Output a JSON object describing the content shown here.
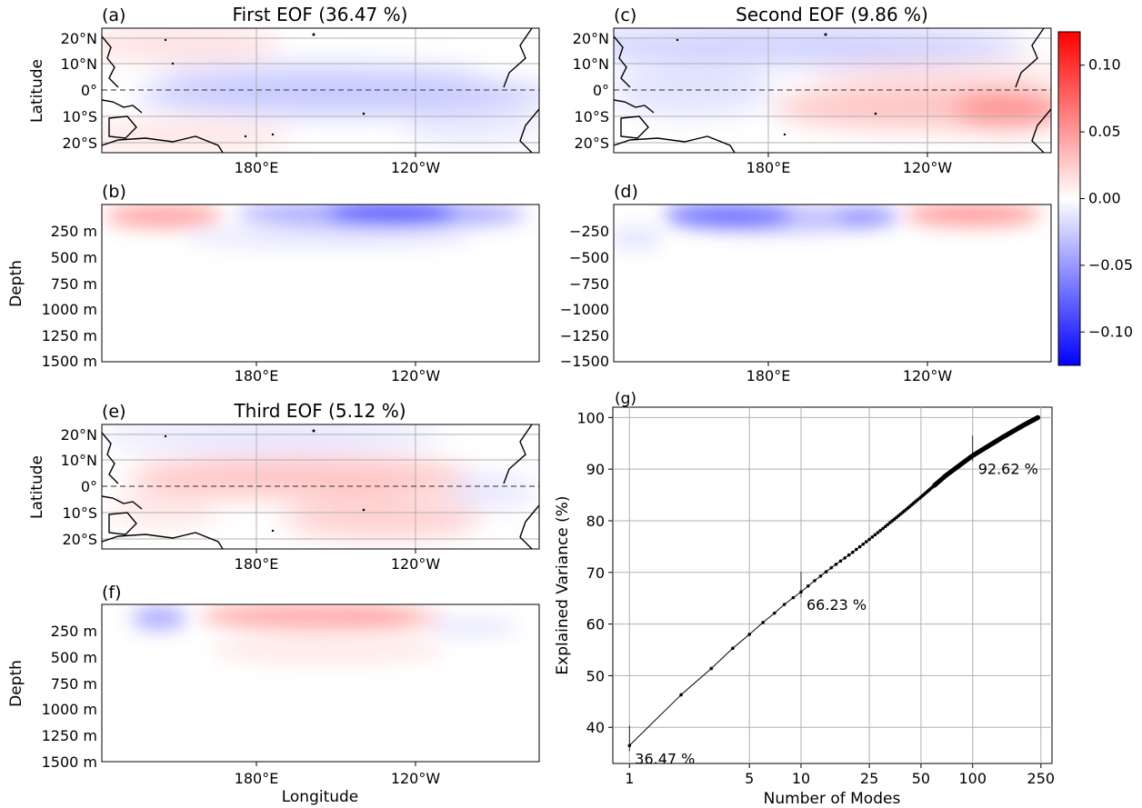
{
  "chart_data": [
    {
      "panel": "(a)",
      "type": "heatmap",
      "title": "First EOF (36.47 %)",
      "ylabel": "Latitude",
      "xlabel": "",
      "xticks": [
        "180°E",
        "120°W"
      ],
      "yticks": [
        "20°N",
        "10°N",
        "0°",
        "10°S",
        "20°S"
      ],
      "pattern": "weak negative (blue) along the equatorial band 150°E–120°W, weak positive (pink) near 10°–20° N/S in the west"
    },
    {
      "panel": "(b)",
      "type": "heatmap",
      "title": "",
      "ylabel": "Depth",
      "xlabel": "",
      "xticks": [
        "180°E",
        "120°W"
      ],
      "yticks": [
        "250 m",
        "500 m",
        "750 m",
        "1000 m",
        "1250 m",
        "1500 m"
      ],
      "pattern": "positive near 150°E above 150 m, strong negative 170°W–110°W above 200 m"
    },
    {
      "panel": "(c)",
      "type": "heatmap",
      "title": "Second EOF (9.86 %)",
      "ylabel": "",
      "xlabel": "",
      "xticks": [
        "180°E",
        "120°W"
      ],
      "yticks": [
        "20°N",
        "10°N",
        "0°",
        "10°S",
        "20°S"
      ],
      "pattern": "negative in the north and west, positive across the southeastern Pacific off South America"
    },
    {
      "panel": "(d)",
      "type": "heatmap",
      "title": "",
      "ylabel": "",
      "xlabel": "",
      "xticks": [
        "180°E",
        "120°W"
      ],
      "yticks": [
        "−250",
        "−500",
        "−750",
        "−1000",
        "−1250",
        "−1500"
      ],
      "pattern": "strong negative 160°E–160°W and positive east of 125°W above 150 m"
    },
    {
      "panel": "(e)",
      "type": "heatmap",
      "title": "Third EOF (5.12 %)",
      "ylabel": "Latitude",
      "xlabel": "",
      "xticks": [
        "180°E",
        "120°W"
      ],
      "yticks": [
        "20°N",
        "10°N",
        "0°",
        "10°S",
        "20°S"
      ],
      "pattern": "positive along equator 170°E–120°W extending south, negative near 15°–20°N"
    },
    {
      "panel": "(f)",
      "type": "heatmap",
      "title": "",
      "ylabel": "Depth",
      "xlabel": "Longitude",
      "xticks": [
        "180°E",
        "120°W"
      ],
      "yticks": [
        "250 m",
        "500 m",
        "750 m",
        "1000 m",
        "1250 m",
        "1500 m"
      ],
      "pattern": "negative near 145°E and positive 165°E–120°W above 150 m"
    },
    {
      "panel": "(g)",
      "type": "line",
      "title": "",
      "xlabel": "Number of Modes",
      "ylabel": "Explained Variance (%)",
      "xscale": "log",
      "xlim": [
        0.8,
        290
      ],
      "ylim": [
        33,
        102
      ],
      "grid": true,
      "xticks": [
        "1",
        "5",
        "10",
        "25",
        "50",
        "100",
        "250"
      ],
      "yticks": [
        "40",
        "50",
        "60",
        "70",
        "80",
        "90",
        "100"
      ],
      "x": [
        1,
        2,
        3,
        4,
        5,
        6,
        7,
        8,
        9,
        10,
        12,
        15,
        20,
        25,
        30,
        40,
        50,
        70,
        100,
        150,
        200,
        240
      ],
      "y": [
        36.47,
        46.3,
        51.4,
        55.3,
        58.0,
        60.3,
        62.1,
        63.8,
        65.1,
        66.23,
        68.4,
        70.9,
        73.9,
        76.4,
        78.5,
        81.9,
        84.6,
        88.8,
        92.62,
        96.2,
        98.6,
        100.0
      ],
      "annotations": [
        {
          "x": 1,
          "y": 36.47,
          "label": "36.47 %"
        },
        {
          "x": 10,
          "y": 66.23,
          "label": "66.23 %"
        },
        {
          "x": 100,
          "y": 92.62,
          "label": "92.62 %"
        }
      ]
    }
  ],
  "colorbar": {
    "range": [
      -0.125,
      0.125
    ],
    "ticks": [
      "0.10",
      "0.05",
      "0.00",
      "−0.05",
      "−0.10"
    ],
    "tick_values": [
      0.1,
      0.05,
      0.0,
      -0.05,
      -0.1
    ],
    "colors": {
      "low": "#0000ff",
      "mid": "#ffffff",
      "high": "#ff0000"
    }
  }
}
